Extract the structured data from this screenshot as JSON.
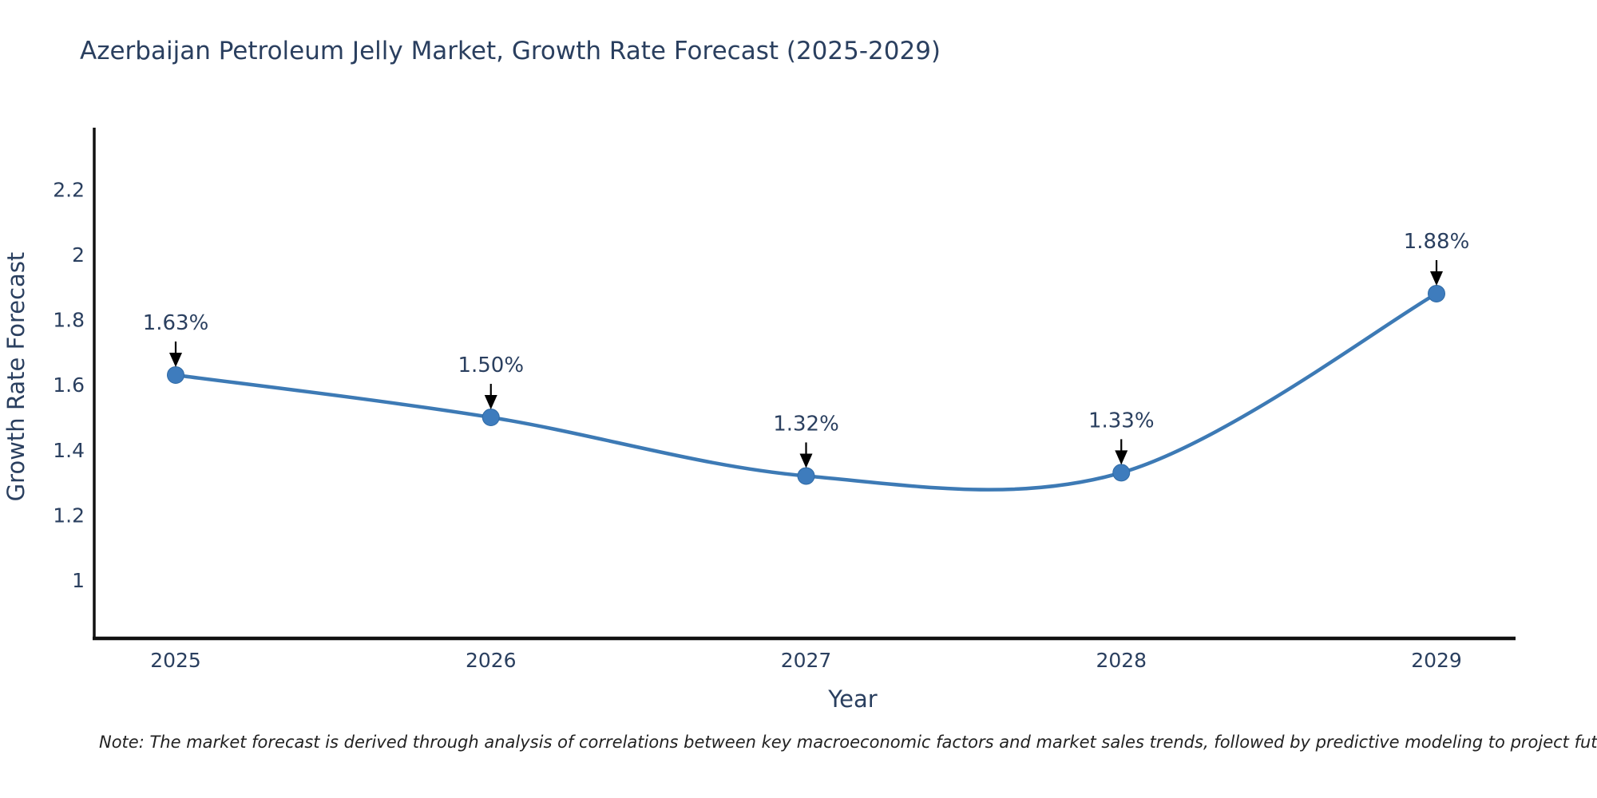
{
  "title": "Azerbaijan Petroleum Jelly Market, Growth Rate Forecast (2025-2029)",
  "note": "Note: The market forecast is derived through analysis of correlations between key macroeconomic factors and market sales trends, followed by predictive modeling to project future sales",
  "chart_data": {
    "type": "line",
    "title": "Azerbaijan Petroleum Jelly Market, Growth Rate Forecast (2025-2029)",
    "xlabel": "Year",
    "ylabel": "Growth Rate Forecast",
    "x": [
      2025,
      2026,
      2027,
      2028,
      2029
    ],
    "values": [
      1.63,
      1.5,
      1.32,
      1.33,
      1.88
    ],
    "point_labels": [
      "1.63%",
      "1.50%",
      "1.32%",
      "1.33%",
      "1.88%"
    ],
    "yticks": [
      1,
      1.2,
      1.4,
      1.6,
      1.8,
      2,
      2.2
    ],
    "ylim": [
      0.82,
      2.39
    ],
    "line_shape": "spline",
    "grid": false,
    "legend": "none",
    "line_color": "#3d7ab5",
    "marker_color": "#3e7cbd",
    "marker_edge_color": "#2f6aa5",
    "annotation_color": "#000000",
    "axis_line_color": "#111111",
    "text_color": "#2a3f5f"
  }
}
